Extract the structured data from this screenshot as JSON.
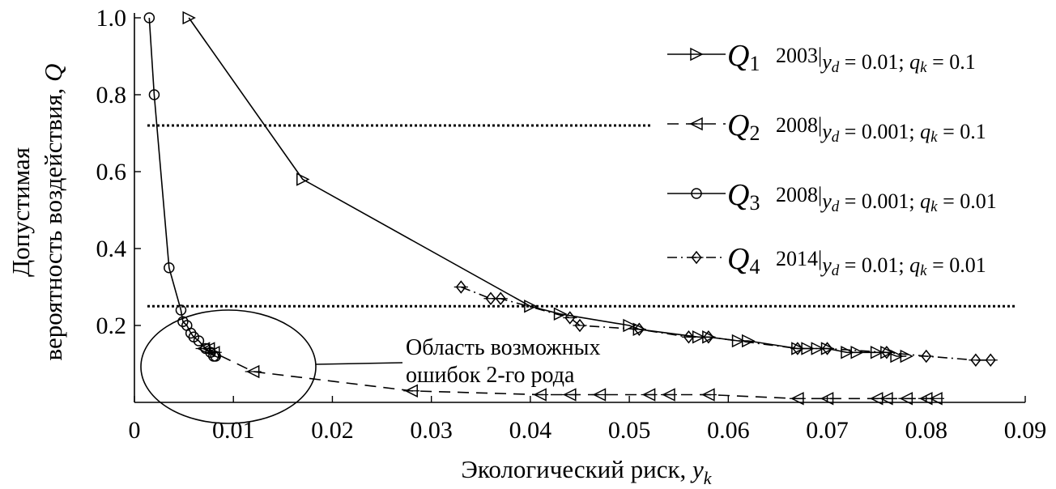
{
  "chart_data": {
    "type": "line",
    "xlabel_text": "Экологический риск, ",
    "xlabel_var": "y",
    "xlabel_sub": "k",
    "ylabel_line1": "Допустимая",
    "ylabel_line2_text": "вероятность воздействия, ",
    "ylabel_line2_var": "Q",
    "xlim": [
      0,
      0.09
    ],
    "ylim": [
      0,
      1.0
    ],
    "x_ticks": [
      0,
      0.01,
      0.02,
      0.03,
      0.04,
      0.05,
      0.06,
      0.07,
      0.08,
      0.09
    ],
    "x_tick_labels": [
      "0",
      "0.01",
      "0.02",
      "0.03",
      "0.04",
      "0.05",
      "0.06",
      "0.07",
      "0.08",
      "0.09"
    ],
    "y_ticks": [
      0.2,
      0.4,
      0.6,
      0.8,
      1.0
    ],
    "y_tick_labels": [
      "0.2",
      "0.4",
      "0.6",
      "0.8",
      "1.0"
    ],
    "grid": false,
    "legend_position": "top-right",
    "reference_lines": [
      0.72,
      0.25
    ],
    "series": [
      {
        "name": "Q1",
        "sub": "1",
        "year": "2003",
        "cond_yd": "0.01",
        "cond_qk": "0.1",
        "marker": "triangle-right",
        "dash": "solid",
        "x": [
          0.0055,
          0.017,
          0.04,
          0.043,
          0.05,
          0.051,
          0.057,
          0.058,
          0.061,
          0.062,
          0.067,
          0.068,
          0.069,
          0.07,
          0.072,
          0.073,
          0.075,
          0.076,
          0.077,
          0.078
        ],
        "y": [
          1.0,
          0.58,
          0.25,
          0.23,
          0.2,
          0.19,
          0.17,
          0.17,
          0.16,
          0.16,
          0.14,
          0.14,
          0.14,
          0.14,
          0.13,
          0.13,
          0.13,
          0.13,
          0.12,
          0.12
        ]
      },
      {
        "name": "Q2",
        "sub": "2",
        "year": "2008",
        "cond_yd": "0.001",
        "cond_qk": "0.1",
        "marker": "triangle-left",
        "dash": "dashed",
        "x": [
          0.007,
          0.0075,
          0.008,
          0.012,
          0.028,
          0.041,
          0.044,
          0.047,
          0.052,
          0.054,
          0.058,
          0.067,
          0.07,
          0.075,
          0.076,
          0.078,
          0.08,
          0.081
        ],
        "y": [
          0.14,
          0.14,
          0.13,
          0.08,
          0.03,
          0.02,
          0.02,
          0.02,
          0.02,
          0.02,
          0.02,
          0.01,
          0.01,
          0.01,
          0.01,
          0.01,
          0.01,
          0.01
        ]
      },
      {
        "name": "Q3",
        "sub": "3",
        "year": "2008",
        "cond_yd": "0.001",
        "cond_qk": "0.01",
        "marker": "circle",
        "dash": "solid",
        "x": [
          0.0015,
          0.002,
          0.0035,
          0.0047,
          0.0049,
          0.0053,
          0.0057,
          0.006,
          0.0065,
          0.0072,
          0.0077,
          0.008,
          0.0082
        ],
        "y": [
          1.0,
          0.8,
          0.35,
          0.24,
          0.21,
          0.2,
          0.18,
          0.17,
          0.16,
          0.14,
          0.13,
          0.12,
          0.12
        ]
      },
      {
        "name": "Q4",
        "sub": "4",
        "year": "2014",
        "cond_yd": "0.01",
        "cond_qk": "0.01",
        "marker": "diamond",
        "dash": "dashdot",
        "x": [
          0.033,
          0.036,
          0.037,
          0.044,
          0.045,
          0.051,
          0.056,
          0.058,
          0.067,
          0.07,
          0.076,
          0.08,
          0.085,
          0.0865
        ],
        "y": [
          0.3,
          0.27,
          0.27,
          0.22,
          0.2,
          0.19,
          0.17,
          0.17,
          0.14,
          0.14,
          0.13,
          0.12,
          0.11,
          0.11
        ]
      }
    ],
    "annotation": {
      "line1": "Область возможных",
      "line2": "ошибок 2-го рода"
    }
  }
}
